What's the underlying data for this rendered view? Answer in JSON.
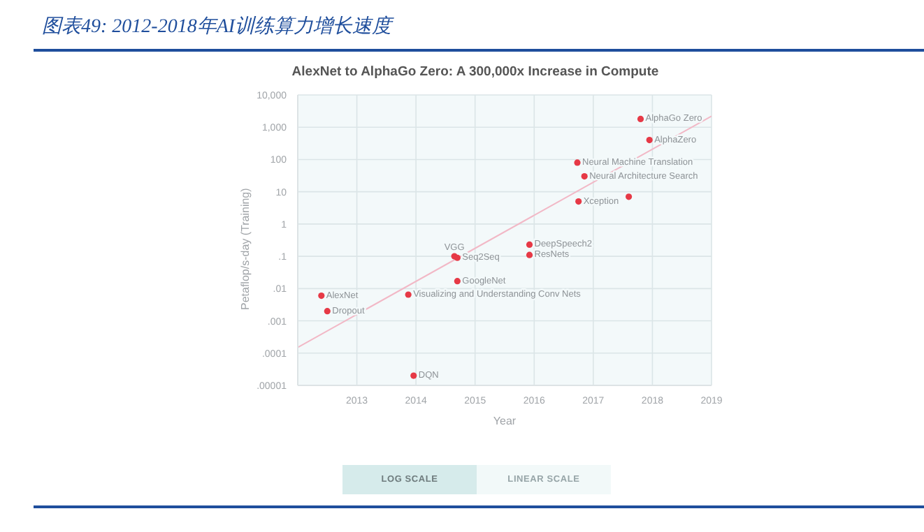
{
  "chart_data": {
    "type": "scatter",
    "title": "AlexNet to AlphaGo Zero: A 300,000x Increase in Compute",
    "subtitle": "图表49:  2012-2018年AI训练算力增长速度",
    "xlabel": "Year",
    "ylabel": "Petaflop/s-day (Training)",
    "xlim": [
      2012,
      2019
    ],
    "xticks": [
      2013,
      2014,
      2015,
      2016,
      2017,
      2018,
      2019
    ],
    "ylim": [
      1e-05,
      10000
    ],
    "log": "y",
    "yticks": [
      {
        "value": 1e-05,
        "label": ".00001"
      },
      {
        "value": 0.0001,
        "label": ".0001"
      },
      {
        "value": 0.001,
        "label": ".001"
      },
      {
        "value": 0.01,
        "label": ".01"
      },
      {
        "value": 0.1,
        "label": ".1"
      },
      1,
      10,
      100,
      {
        "value": 1000,
        "label": "1,000"
      },
      {
        "value": 10000,
        "label": "10,000"
      }
    ],
    "grid": true,
    "legend": false,
    "marker": "circle",
    "series": [
      {
        "color": "#e63946",
        "x": [
          2012.4,
          2012.5,
          2013.87,
          2013.96,
          2014.65,
          2014.7,
          2014.7,
          2015.92,
          2015.92,
          2016.73,
          2016.85,
          2016.75,
          2017.6,
          2017.8,
          2017.95
        ],
        "values": [
          0.006,
          0.002,
          0.0065,
          2e-05,
          0.1,
          0.09,
          0.017,
          0.23,
          0.11,
          80,
          30,
          5,
          7,
          1800,
          400
        ]
      },
      {
        "type": "line",
        "marker": "none",
        "color": "#f2b8c6",
        "x": [
          2012,
          2019
        ],
        "values": [
          0.00015,
          2200
        ]
      }
    ],
    "annotations": [
      {
        "text": "AlexNet",
        "x": 2012.4,
        "y": 0.006
      },
      {
        "text": "Dropout",
        "x": 2012.5,
        "y": 0.002
      },
      {
        "text": "Visualizing and Understanding Conv Nets",
        "x": 2013.87,
        "y": 0.0065
      },
      {
        "text": "DQN",
        "x": 2013.96,
        "y": 2e-05
      },
      {
        "text": "VGG",
        "x": 2014.65,
        "y": 0.1
      },
      {
        "text": "Seq2Seq",
        "x": 2014.7,
        "y": 0.09
      },
      {
        "text": "GoogleNet",
        "x": 2014.7,
        "y": 0.017
      },
      {
        "text": "DeepSpeech2",
        "x": 2015.92,
        "y": 0.23
      },
      {
        "text": "ResNets",
        "x": 2015.92,
        "y": 0.11
      },
      {
        "text": "Neural Machine Translation",
        "x": 2016.73,
        "y": 80
      },
      {
        "text": "Neural Architecture Search",
        "x": 2016.85,
        "y": 30
      },
      {
        "text": "Xception",
        "x": 2016.75,
        "y": 5
      },
      {
        "text": "AlphaGo Zero",
        "x": 2017.8,
        "y": 1800
      },
      {
        "text": "AlphaZero",
        "x": 2017.95,
        "y": 400
      },
      "LOG SCALE",
      "LINEAR SCALE"
    ]
  }
}
